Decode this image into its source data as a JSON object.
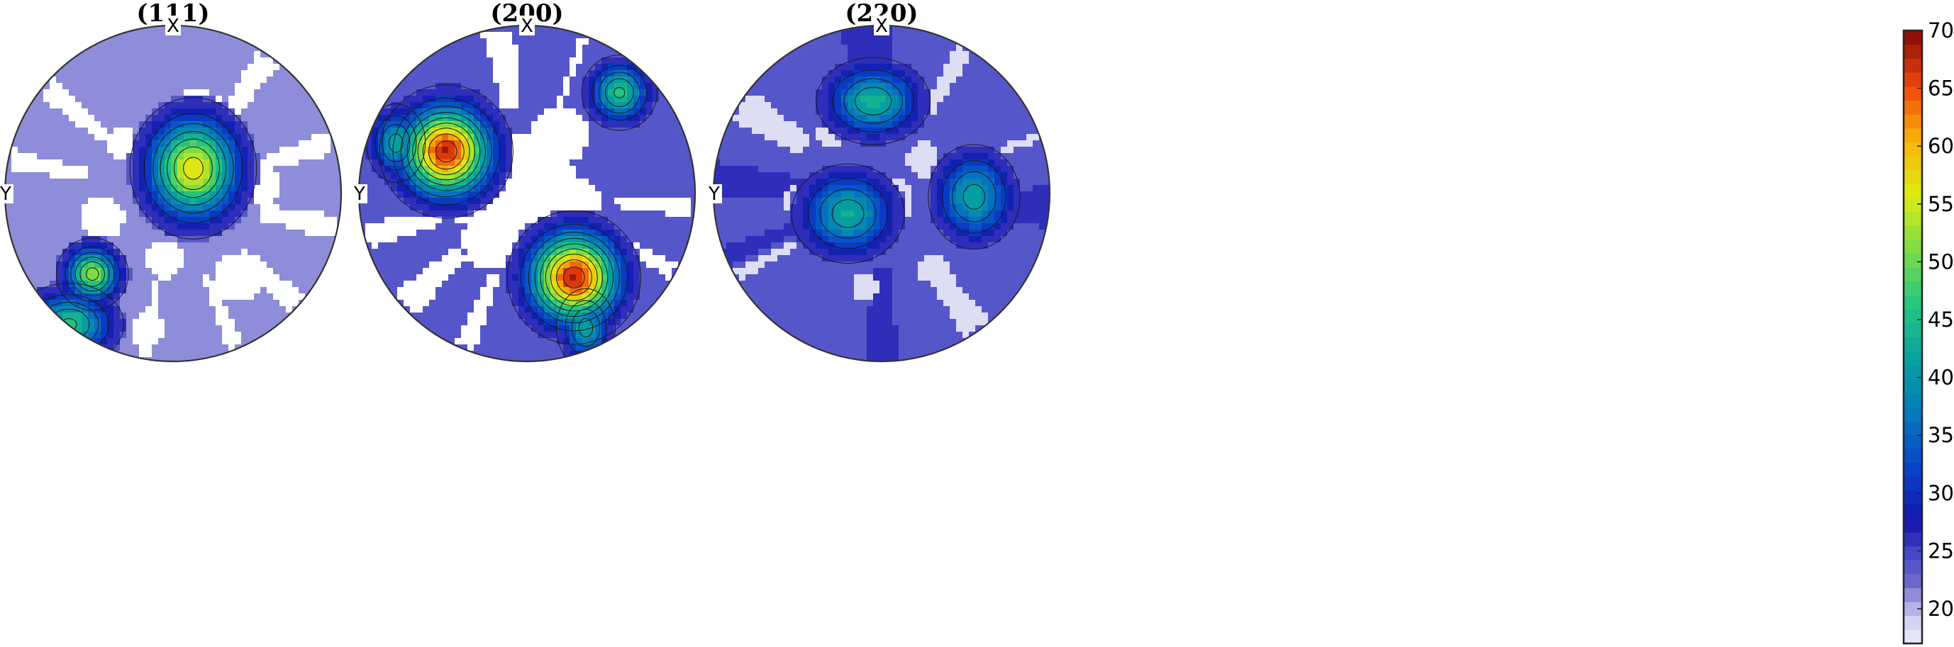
{
  "chart_data": {
    "type": "heatmap",
    "subtype": "pole-figure",
    "colormap": "parula",
    "colorbar": {
      "ticks": [
        20,
        25,
        30,
        35,
        40,
        45,
        50,
        55,
        60,
        65,
        70
      ],
      "range": [
        17,
        70
      ],
      "placement": "right"
    },
    "panels": [
      {
        "title": "(111)",
        "x_axis_label": "X",
        "y_axis_label": "Y",
        "background_level": 22,
        "blank_below": 20,
        "blank_regions": [
          {
            "cx": 0.15,
            "cy": -0.45,
            "r": 0.17
          },
          {
            "cx": 0.52,
            "cy": -0.05,
            "r": 0.12
          },
          {
            "cx": -0.42,
            "cy": 0.15,
            "r": 0.13
          },
          {
            "cx": 0.4,
            "cy": 0.5,
            "r": 0.15
          },
          {
            "cx": -0.05,
            "cy": 0.4,
            "r": 0.11
          },
          {
            "cx": -0.15,
            "cy": 0.82,
            "r": 0.1
          },
          {
            "cx": 0.1,
            "cy": 0.2,
            "r": 0.09
          },
          {
            "cx": -0.3,
            "cy": -0.3,
            "r": 0.09
          }
        ],
        "blank_spokes": [
          {
            "angle_deg": 55,
            "width_deg": 9
          },
          {
            "angle_deg": 18,
            "width_deg": 8
          },
          {
            "angle_deg": -12,
            "width_deg": 9
          },
          {
            "angle_deg": -42,
            "width_deg": 9
          },
          {
            "angle_deg": -68,
            "width_deg": 6
          },
          {
            "angle_deg": -100,
            "width_deg": 5
          },
          {
            "angle_deg": 168,
            "width_deg": 7
          },
          {
            "angle_deg": 140,
            "width_deg": 8
          }
        ],
        "peaks": [
          {
            "cx": 0.12,
            "cy": -0.15,
            "peak": 57,
            "sx": 0.17,
            "sy": 0.19
          },
          {
            "cx": -0.48,
            "cy": 0.48,
            "peak": 52,
            "sx": 0.1,
            "sy": 0.1
          },
          {
            "cx": -0.62,
            "cy": 0.78,
            "peak": 46,
            "sx": 0.16,
            "sy": 0.12
          }
        ]
      },
      {
        "title": "(200)",
        "x_axis_label": "X",
        "y_axis_label": "Y",
        "background_level": 24,
        "blank_below": 20,
        "blank_regions": [
          {
            "cx": 0.0,
            "cy": -0.05,
            "r": 0.3
          },
          {
            "cx": -0.25,
            "cy": -0.3,
            "r": 0.17
          },
          {
            "cx": 0.25,
            "cy": 0.1,
            "r": 0.2
          },
          {
            "cx": 0.2,
            "cy": -0.35,
            "r": 0.17
          },
          {
            "cx": -0.2,
            "cy": 0.28,
            "r": 0.18
          },
          {
            "cx": 0.05,
            "cy": 0.22,
            "r": 0.15
          },
          {
            "cx": -0.35,
            "cy": 0.05,
            "r": 0.13
          }
        ],
        "blank_spokes": [
          {
            "angle_deg": 100,
            "width_deg": 11
          },
          {
            "angle_deg": 70,
            "width_deg": 3
          },
          {
            "angle_deg": -5,
            "width_deg": 7
          },
          {
            "angle_deg": -28,
            "width_deg": 6
          },
          {
            "angle_deg": -55,
            "width_deg": 3
          },
          {
            "angle_deg": -112,
            "width_deg": 7
          },
          {
            "angle_deg": -138,
            "width_deg": 11
          },
          {
            "angle_deg": 195,
            "width_deg": 9
          }
        ],
        "peaks": [
          {
            "cx": -0.48,
            "cy": -0.25,
            "peak": 68,
            "sx": 0.17,
            "sy": 0.17
          },
          {
            "cx": 0.28,
            "cy": 0.5,
            "peak": 68,
            "sx": 0.17,
            "sy": 0.17
          },
          {
            "cx": 0.55,
            "cy": -0.6,
            "peak": 46,
            "sx": 0.11,
            "sy": 0.11
          },
          {
            "cx": -0.78,
            "cy": -0.3,
            "peak": 42,
            "sx": 0.09,
            "sy": 0.12
          },
          {
            "cx": 0.35,
            "cy": 0.8,
            "peak": 42,
            "sx": 0.09,
            "sy": 0.12
          }
        ]
      },
      {
        "title": "(220)",
        "x_axis_label": "X",
        "y_axis_label": "Y",
        "background_level": 22.5,
        "blank_below": 0,
        "blank_regions": [
          {
            "cx": 0.05,
            "cy": 0.05,
            "r": 0.14,
            "level": 19
          },
          {
            "cx": -0.5,
            "cy": 0.05,
            "r": 0.09,
            "level": 19
          },
          {
            "cx": 0.3,
            "cy": 0.45,
            "r": 0.09,
            "level": 19
          },
          {
            "cx": -0.1,
            "cy": 0.55,
            "r": 0.08,
            "level": 19
          },
          {
            "cx": 0.25,
            "cy": -0.2,
            "r": 0.1,
            "level": 19
          },
          {
            "cx": -0.3,
            "cy": -0.35,
            "r": 0.08,
            "level": 19
          }
        ],
        "blank_spokes": [
          {
            "angle_deg": 148,
            "width_deg": 13,
            "level": 19
          },
          {
            "angle_deg": 60,
            "width_deg": 7,
            "level": 19
          },
          {
            "angle_deg": 20,
            "width_deg": 3,
            "level": 19
          },
          {
            "angle_deg": -55,
            "width_deg": 11,
            "level": 19
          },
          {
            "angle_deg": -150,
            "width_deg": 4,
            "level": 19
          }
        ],
        "dark_spokes": [
          {
            "angle_deg": 95,
            "width_deg": 18,
            "level": 27
          },
          {
            "angle_deg": -90,
            "width_deg": 12,
            "level": 27
          },
          {
            "angle_deg": 175,
            "width_deg": 12,
            "level": 27
          },
          {
            "angle_deg": -5,
            "width_deg": 14,
            "level": 27
          },
          {
            "angle_deg": 202,
            "width_deg": 7,
            "level": 27
          }
        ],
        "peaks": [
          {
            "cx": -0.05,
            "cy": -0.55,
            "peak": 44,
            "sx": 0.17,
            "sy": 0.13
          },
          {
            "cx": -0.2,
            "cy": 0.12,
            "peak": 43,
            "sx": 0.17,
            "sy": 0.15
          },
          {
            "cx": 0.55,
            "cy": 0.02,
            "peak": 42,
            "sx": 0.14,
            "sy": 0.16
          }
        ]
      }
    ]
  }
}
